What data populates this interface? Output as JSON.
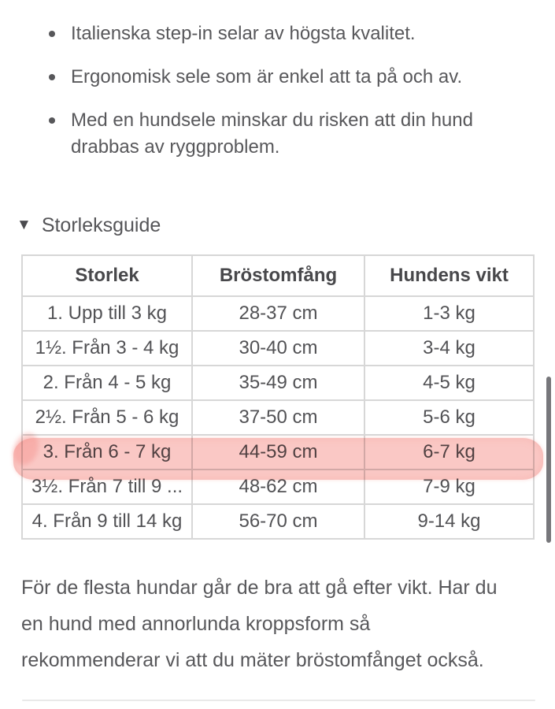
{
  "colors": {
    "highlight_marker": "#f4867e",
    "table_border": "#d7d7d7",
    "body_text": "#58585b",
    "header_text": "#48484b",
    "scrollbar": "#77777b",
    "divider": "#e9e9e9"
  },
  "bullets": [
    "Italienska step-in selar av högsta kvalitet.",
    "Ergonomisk sele som är enkel att ta på och av.",
    "Med en hundsele minskar du risken att din hund drabbas av ryggproblem."
  ],
  "size_guide": {
    "toggle_icon": "triangle-down",
    "title": "Storleksguide",
    "table": {
      "headers": [
        "Storlek",
        "Bröstomfång",
        "Hundens vikt"
      ],
      "rows": [
        {
          "size": "1. Upp till 3 kg",
          "chest": "28-37 cm",
          "weight": "1-3 kg"
        },
        {
          "size": "1½. Från 3 - 4 kg",
          "chest": "30-40 cm",
          "weight": "3-4 kg"
        },
        {
          "size": "2. Från 4 - 5 kg",
          "chest": "35-49 cm",
          "weight": "4-5 kg"
        },
        {
          "size": "2½. Från 5 - 6 kg",
          "chest": "37-50 cm",
          "weight": "5-6 kg"
        },
        {
          "size": "3. Från 6 - 7 kg",
          "chest": "44-59 cm",
          "weight": "6-7 kg"
        },
        {
          "size": "3½. Från 7 till 9 ...",
          "chest": "48-62 cm",
          "weight": "7-9 kg"
        },
        {
          "size": "4. Från 9 till 14 kg",
          "chest": "56-70 cm",
          "weight": "9-14 kg"
        }
      ],
      "highlighted_row_index": 4
    }
  },
  "paragraph": {
    "lines": [
      "För de flesta hundar går de bra att gå efter vikt. Har du",
      "en hund med annorlunda kroppsform så",
      "rekommenderar vi att du mäter bröstomfånget också."
    ]
  }
}
